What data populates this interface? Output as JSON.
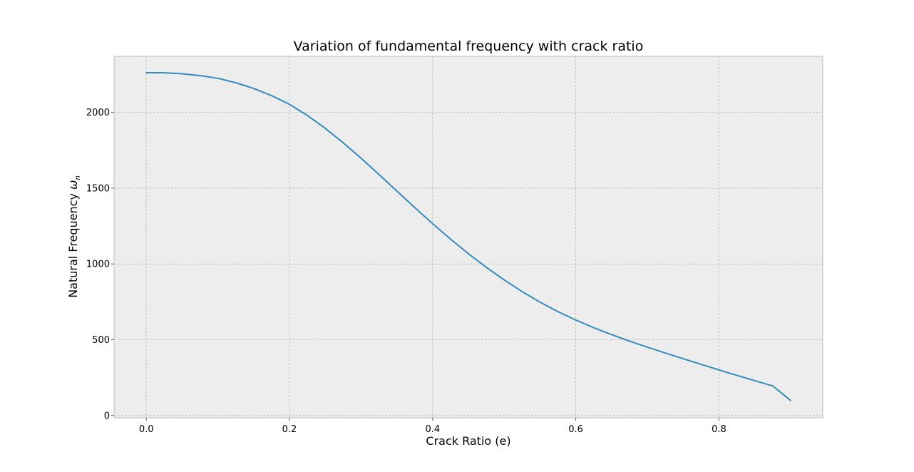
{
  "chart_data": {
    "type": "line",
    "title": "Variation of fundamental frequency with crack ratio",
    "xlabel": "Crack Ratio (e)",
    "ylabel_main": "Natural Frequency ",
    "ylabel_symbol": "ω",
    "ylabel_subscript": "n",
    "xlim": [
      -0.045,
      0.945
    ],
    "ylim": [
      -15,
      2370
    ],
    "x_ticks": [
      0.0,
      0.2,
      0.4,
      0.6,
      0.8
    ],
    "x_tick_labels": [
      "0.0",
      "0.2",
      "0.4",
      "0.6",
      "0.8"
    ],
    "y_ticks": [
      0,
      500,
      1000,
      1500,
      2000
    ],
    "y_tick_labels": [
      "0",
      "500",
      "1000",
      "1500",
      "2000"
    ],
    "grid": true,
    "series": [
      {
        "color": "#348abd",
        "x": [
          0.0,
          0.025,
          0.05,
          0.075,
          0.1,
          0.125,
          0.15,
          0.175,
          0.2,
          0.225,
          0.25,
          0.275,
          0.3,
          0.325,
          0.35,
          0.375,
          0.4,
          0.425,
          0.45,
          0.475,
          0.5,
          0.525,
          0.55,
          0.575,
          0.6,
          0.625,
          0.65,
          0.675,
          0.7,
          0.725,
          0.75,
          0.775,
          0.8,
          0.825,
          0.85,
          0.875,
          0.9
        ],
        "y": [
          2262,
          2261,
          2255,
          2243,
          2225,
          2196,
          2158,
          2111,
          2053,
          1980,
          1895,
          1800,
          1698,
          1591,
          1481,
          1372,
          1266,
          1164,
          1068,
          978,
          895,
          818,
          748,
          686,
          630,
          580,
          534,
          491,
          451,
          413,
          375,
          338,
          301,
          265,
          230,
          196,
          100
        ]
      }
    ]
  },
  "style": {
    "plot_background": "#ededed",
    "figure_background": "#ffffff",
    "spine_color": "#bcbcbc"
  }
}
